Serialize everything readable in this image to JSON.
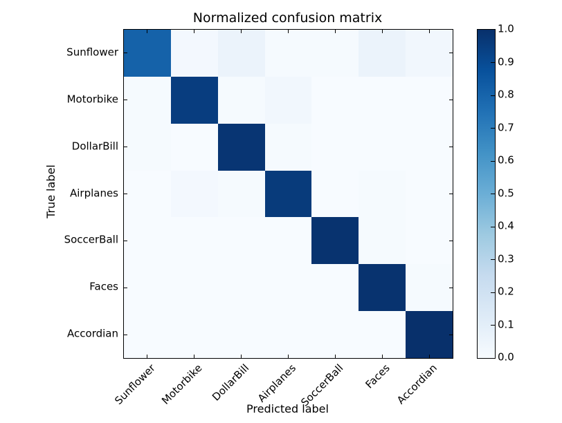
{
  "figure": {
    "background": "#ffffff",
    "frame_color": "#000000"
  },
  "chart_data": {
    "type": "heatmap",
    "title": "Normalized confusion matrix",
    "xlabel": "Predicted label",
    "ylabel": "True label",
    "categories": [
      "Sunflower",
      "Motorbike",
      "DollarBill",
      "Airplanes",
      "SoccerBall",
      "Faces",
      "Accordian"
    ],
    "matrix": [
      [
        0.81,
        0.02,
        0.06,
        0.01,
        0.01,
        0.06,
        0.03
      ],
      [
        0.01,
        0.95,
        0.01,
        0.03,
        0.0,
        0.0,
        0.0
      ],
      [
        0.01,
        0.0,
        0.98,
        0.01,
        0.0,
        0.0,
        0.0
      ],
      [
        0.0,
        0.02,
        0.01,
        0.96,
        0.0,
        0.01,
        0.0
      ],
      [
        0.0,
        0.0,
        0.0,
        0.0,
        0.99,
        0.01,
        0.0
      ],
      [
        0.0,
        0.0,
        0.0,
        0.0,
        0.0,
        0.99,
        0.01
      ],
      [
        0.0,
        0.0,
        0.0,
        0.0,
        0.0,
        0.0,
        1.0
      ]
    ],
    "vmin": 0.0,
    "vmax": 1.0,
    "grid": false,
    "colormap": {
      "name": "Blues",
      "stops": [
        [
          0.0,
          "#f7fbff"
        ],
        [
          0.125,
          "#deebf7"
        ],
        [
          0.25,
          "#c6dbef"
        ],
        [
          0.375,
          "#9ecae1"
        ],
        [
          0.5,
          "#6baed6"
        ],
        [
          0.625,
          "#4292c6"
        ],
        [
          0.75,
          "#2171b5"
        ],
        [
          0.875,
          "#08519c"
        ],
        [
          1.0,
          "#08306b"
        ]
      ]
    },
    "colorbar": {
      "position": "right",
      "tick_labels": [
        "1.0",
        "0.9",
        "0.8",
        "0.7",
        "0.6",
        "0.5",
        "0.4",
        "0.3",
        "0.2",
        "0.1",
        "0.0"
      ],
      "tick_values": [
        1.0,
        0.9,
        0.8,
        0.7,
        0.6,
        0.5,
        0.4,
        0.3,
        0.2,
        0.1,
        0.0
      ]
    }
  }
}
